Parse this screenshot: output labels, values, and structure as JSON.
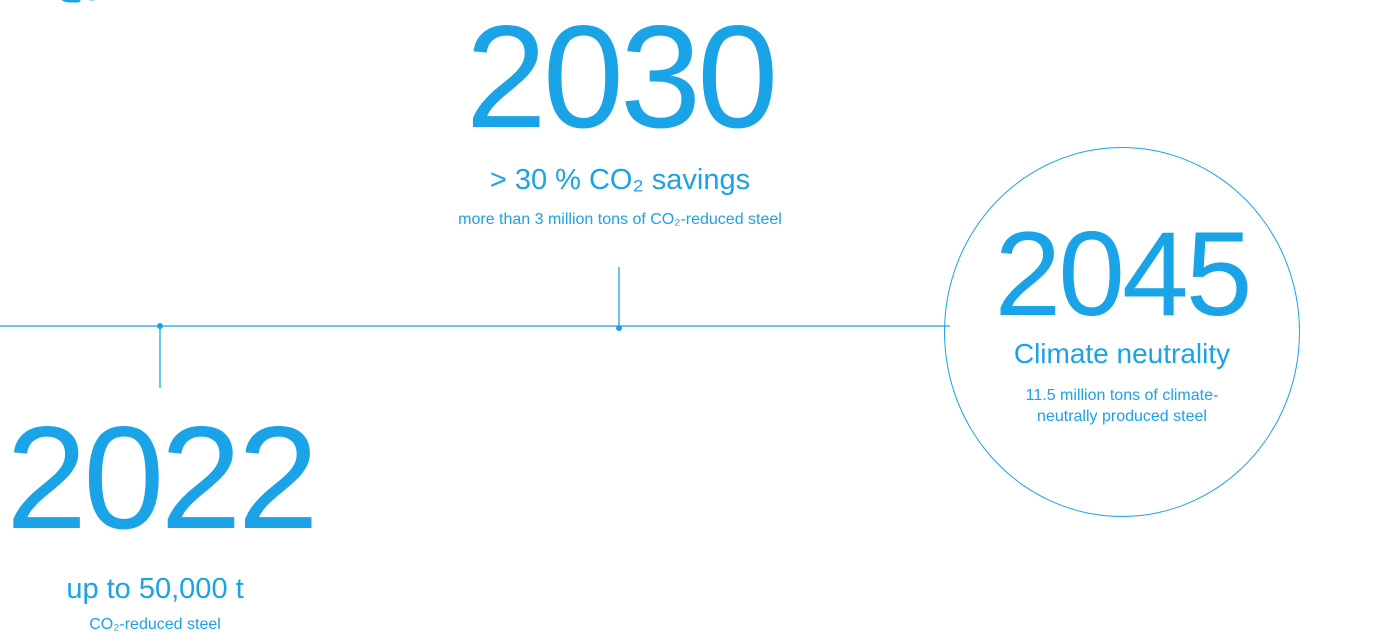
{
  "colors": {
    "accent": "#1aa3e6"
  },
  "logo": {
    "icon": "co2-logo-fragment-icon"
  },
  "milestones": {
    "m2022": {
      "year": "2022",
      "headline": "up to 50,000 t",
      "sub": "CO₂-reduced steel"
    },
    "m2030": {
      "year": "2030",
      "headline": "> 30 % CO₂ savings",
      "sub": "more than 3 million tons of CO₂-reduced steel"
    },
    "m2045": {
      "year": "2045",
      "headline": "Climate neutrality",
      "sub": "11.5 million tons of climate-neutrally produced steel"
    }
  }
}
